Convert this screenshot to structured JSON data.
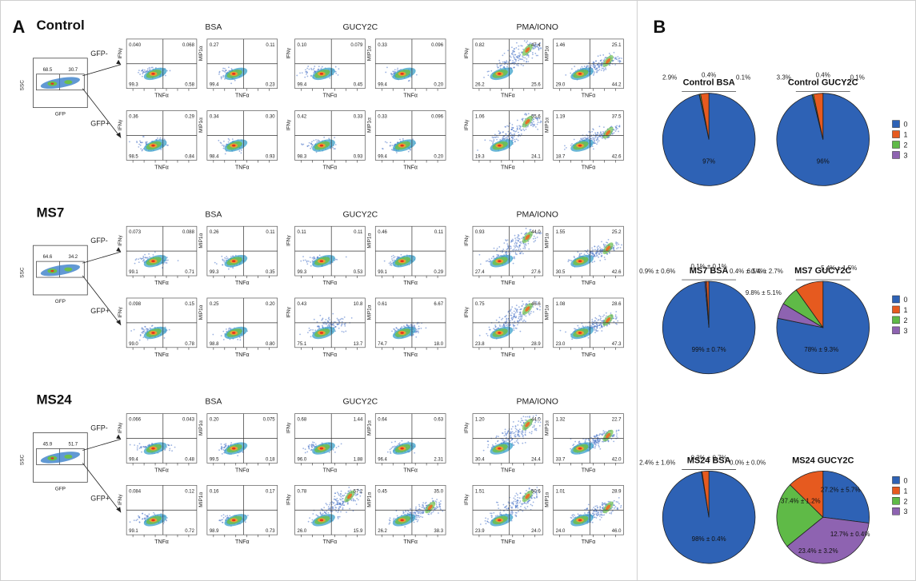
{
  "panel_a": {
    "letter": "A",
    "conditions": [
      "BSA",
      "GUCY2C",
      "PMA/IONO"
    ],
    "scatter_ssc_label": "SSC",
    "scatter_gfp_label": "GFP",
    "x_label": "TNFα",
    "y_labels": [
      "IFNγ",
      "MIP1α"
    ],
    "gate_neg": "GFP-",
    "gate_pos": "GFP+",
    "groups": [
      {
        "name": "Control",
        "ssc_gates": [
          "68.5",
          "30.7"
        ],
        "rows": [
          {
            "plots": [
              {
                "q": [
                  "0.040",
                  "0.068",
                  "99.3",
                  "0.58"
                ]
              },
              {
                "q": [
                  "0.27",
                  "0.11",
                  "99.4",
                  "0.23"
                ]
              },
              {
                "q": [
                  "0.10",
                  "0.079",
                  "99.4",
                  "0.45"
                ]
              },
              {
                "q": [
                  "0.33",
                  "0.096",
                  "99.4",
                  "0.20"
                ]
              },
              {
                "q": [
                  "0.82",
                  "47.4",
                  "26.2",
                  "25.6"
                ]
              },
              {
                "q": [
                  "1.46",
                  "25.1",
                  "29.0",
                  "44.2"
                ]
              }
            ]
          },
          {
            "plots": [
              {
                "q": [
                  "0.36",
                  "0.29",
                  "98.5",
                  "0.84"
                ]
              },
              {
                "q": [
                  "0.34",
                  "0.30",
                  "98.4",
                  "0.93"
                ]
              },
              {
                "q": [
                  "0.42",
                  "0.33",
                  "98.3",
                  "0.93"
                ]
              },
              {
                "q": [
                  "0.33",
                  "0.096",
                  "99.4",
                  "0.20"
                ]
              },
              {
                "q": [
                  "1.06",
                  "55.6",
                  "19.3",
                  "24.1"
                ]
              },
              {
                "q": [
                  "1.19",
                  "37.5",
                  "18.7",
                  "42.6"
                ]
              }
            ]
          }
        ]
      },
      {
        "name": "MS7",
        "ssc_gates": [
          "64.6",
          "34.2"
        ],
        "rows": [
          {
            "plots": [
              {
                "q": [
                  "0.073",
                  "0.088",
                  "99.1",
                  "0.71"
                ]
              },
              {
                "q": [
                  "0.26",
                  "0.11",
                  "99.3",
                  "0.35"
                ]
              },
              {
                "q": [
                  "0.11",
                  "0.11",
                  "99.3",
                  "0.53"
                ]
              },
              {
                "q": [
                  "0.46",
                  "0.11",
                  "99.1",
                  "0.29"
                ]
              },
              {
                "q": [
                  "0.93",
                  "44.0",
                  "27.4",
                  "27.6"
                ]
              },
              {
                "q": [
                  "1.55",
                  "25.2",
                  "30.5",
                  "42.6"
                ]
              }
            ]
          },
          {
            "plots": [
              {
                "q": [
                  "0.098",
                  "0.15",
                  "99.0",
                  "0.78"
                ]
              },
              {
                "q": [
                  "0.25",
                  "0.20",
                  "98.8",
                  "0.80"
                ]
              },
              {
                "q": [
                  "0.43",
                  "10.8",
                  "75.1",
                  "13.7"
                ]
              },
              {
                "q": [
                  "0.61",
                  "6.67",
                  "74.7",
                  "18.0"
                ]
              },
              {
                "q": [
                  "0.75",
                  "46.6",
                  "23.8",
                  "28.9"
                ]
              },
              {
                "q": [
                  "1.08",
                  "28.6",
                  "23.0",
                  "47.3"
                ]
              }
            ]
          }
        ]
      },
      {
        "name": "MS24",
        "ssc_gates": [
          "45.9",
          "51.7"
        ],
        "rows": [
          {
            "plots": [
              {
                "q": [
                  "0.066",
                  "0.043",
                  "99.4",
                  "0.48"
                ]
              },
              {
                "q": [
                  "0.20",
                  "0.075",
                  "99.5",
                  "0.18"
                ]
              },
              {
                "q": [
                  "0.68",
                  "1.44",
                  "96.0",
                  "1.88"
                ]
              },
              {
                "q": [
                  "0.64",
                  "0.63",
                  "96.4",
                  "2.31"
                ]
              },
              {
                "q": [
                  "1.20",
                  "44.0",
                  "30.4",
                  "24.4"
                ]
              },
              {
                "q": [
                  "1.32",
                  "22.7",
                  "33.7",
                  "42.0"
                ]
              }
            ]
          },
          {
            "plots": [
              {
                "q": [
                  "0.084",
                  "0.12",
                  "99.1",
                  "0.72"
                ]
              },
              {
                "q": [
                  "0.16",
                  "0.17",
                  "98.9",
                  "0.73"
                ]
              },
              {
                "q": [
                  "0.78",
                  "57.2",
                  "26.0",
                  "15.9"
                ]
              },
              {
                "q": [
                  "0.45",
                  "35.0",
                  "26.2",
                  "38.3"
                ]
              },
              {
                "q": [
                  "1.51",
                  "50.6",
                  "23.9",
                  "24.0"
                ]
              },
              {
                "q": [
                  "1.01",
                  "28.9",
                  "24.0",
                  "46.0"
                ]
              }
            ]
          }
        ]
      }
    ]
  },
  "panel_b": {
    "letter": "B",
    "legend_labels": [
      "0",
      "1",
      "2",
      "3"
    ],
    "colors": [
      "#2e62b5",
      "#e65a1f",
      "#5fba47",
      "#8e63b1"
    ]
  },
  "chart_data": [
    {
      "type": "pie",
      "title": "Control BSA",
      "categories": [
        "0",
        "1",
        "2",
        "3"
      ],
      "values": [
        97,
        2.9,
        0.4,
        0.1
      ],
      "labels": [
        "97%",
        "2.9%",
        "0.4%",
        "0.1%"
      ]
    },
    {
      "type": "pie",
      "title": "Control GUCY2C",
      "categories": [
        "0",
        "1",
        "2",
        "3"
      ],
      "values": [
        96,
        3.3,
        0.4,
        0.1
      ],
      "labels": [
        "96%",
        "3.3%",
        "0.4%",
        "0.1%"
      ]
    },
    {
      "type": "pie",
      "title": "MS7 BSA",
      "categories": [
        "0",
        "1",
        "2",
        "3"
      ],
      "values": [
        99,
        0.9,
        0.1,
        0.4
      ],
      "labels": [
        "99% ± 0.7%",
        "0.9% ± 0.6%",
        "0.1% ± 0.1%",
        "0.4% ± 0.4%"
      ]
    },
    {
      "type": "pie",
      "title": "MS7 GUCY2C",
      "categories": [
        "0",
        "1",
        "2",
        "3"
      ],
      "values": [
        78,
        9.8,
        6.5,
        5.4
      ],
      "labels": [
        "78% ± 9.3%",
        "9.8% ± 5.1%",
        "6.5% ± 2.7%",
        "5.4% ± 1.5%"
      ]
    },
    {
      "type": "pie",
      "title": "MS24 BSA",
      "categories": [
        "0",
        "1",
        "2",
        "3"
      ],
      "values": [
        98,
        2.4,
        0.2,
        0.0
      ],
      "labels": [
        "98% ± 0.4%",
        "2.4% ± 1.6%",
        "0.2% ± 0.7%",
        "0.0% ± 0.0%"
      ]
    },
    {
      "type": "pie",
      "title": "MS24 GUCY2C",
      "categories": [
        "0",
        "1",
        "2",
        "3"
      ],
      "values": [
        27.2,
        12.7,
        23.4,
        37.4
      ],
      "labels": [
        "27.2% ± 5.7%",
        "12.7% ± 0.4%",
        "23.4% ± 3.2%",
        "37.4% ± 1.2%"
      ]
    }
  ]
}
